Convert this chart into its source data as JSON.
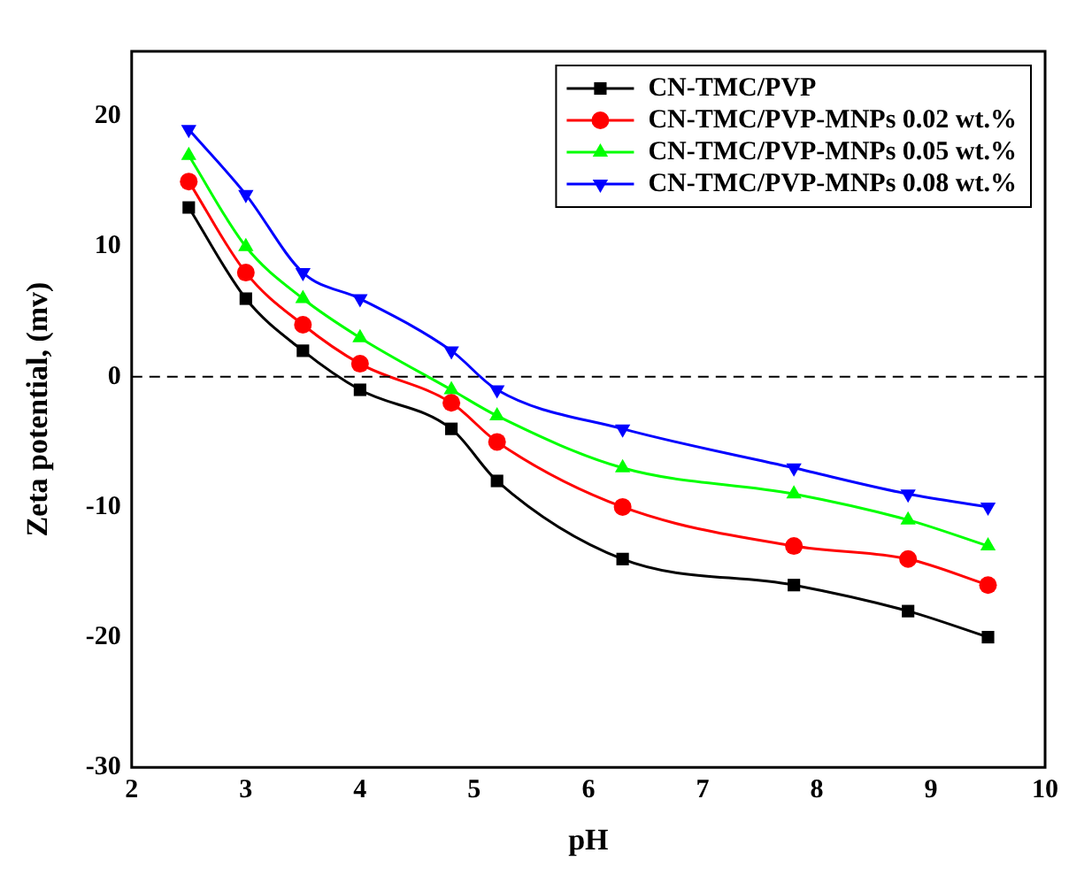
{
  "chart_data": {
    "type": "line",
    "xlabel": "pH",
    "ylabel": "Zeta potential, (mv)",
    "x": [
      2.5,
      3,
      3.5,
      4,
      4.8,
      5.2,
      6.3,
      7.8,
      8.8,
      9.5
    ],
    "series": [
      {
        "name": "CN-TMC/PVP",
        "color": "#000000",
        "marker": "square",
        "values": [
          13,
          6,
          2,
          -1,
          -4,
          -8,
          -14,
          -16,
          -18,
          -20
        ]
      },
      {
        "name": "CN-TMC/PVP-MNPs 0.02 wt.%",
        "color": "#ff0000",
        "marker": "circle",
        "values": [
          15,
          8,
          4,
          1,
          -2,
          -5,
          -10,
          -13,
          -14,
          -16
        ]
      },
      {
        "name": "CN-TMC/PVP-MNPs 0.05 wt.%",
        "color": "#00ff00",
        "marker": "triangle",
        "values": [
          17,
          10,
          6,
          3,
          -1,
          -3,
          -7,
          -9,
          -11,
          -13
        ]
      },
      {
        "name": "CN-TMC/PVP-MNPs 0.08 wt.%",
        "color": "#0000ff",
        "marker": "triangle_down",
        "values": [
          19,
          14,
          8,
          6,
          2,
          -1,
          -4,
          -7,
          -9,
          -10
        ]
      }
    ],
    "xlim": [
      2,
      10
    ],
    "xticks": [
      2,
      3,
      4,
      5,
      6,
      7,
      8,
      9,
      10
    ],
    "ylim": [
      -30,
      25
    ],
    "yticks": [
      -30,
      -20,
      -10,
      0,
      10,
      20
    ],
    "ref_lines": [
      {
        "axis": "y",
        "value": 0,
        "line_style": "dashed",
        "color": "#000000"
      }
    ],
    "grid": false,
    "legend": "top right"
  }
}
